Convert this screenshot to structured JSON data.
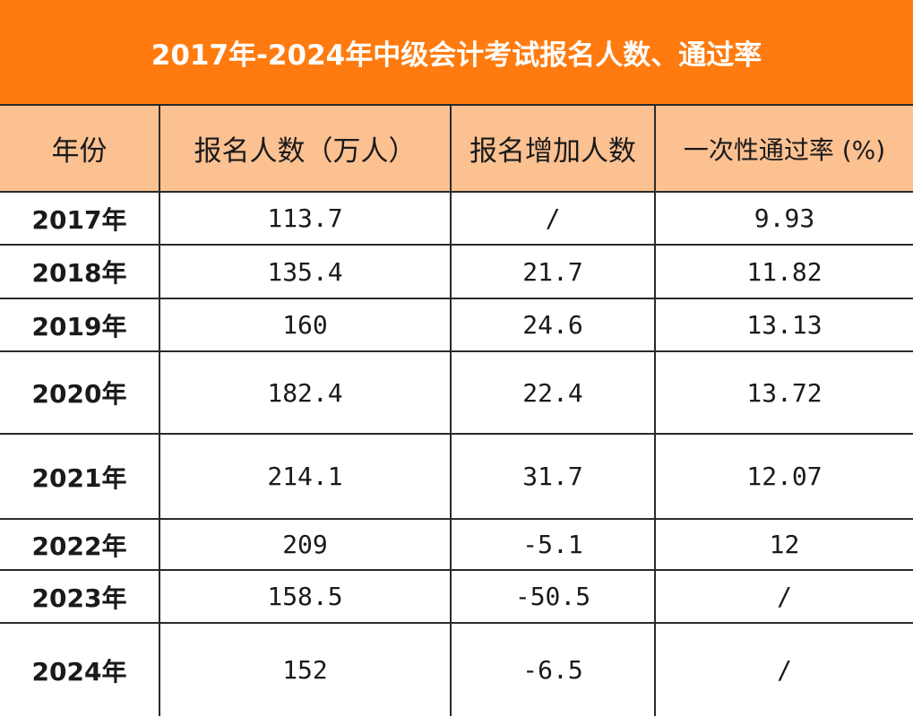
{
  "title": "2017年-2024年中级会计考试报名人数、通过率",
  "columns": [
    "年份",
    "报名人数（万人）",
    "报名增加人数",
    "一次性通过率 (%)"
  ],
  "rows": [
    {
      "year": "2017年",
      "applicants": "113.7",
      "increase": "/",
      "pass_rate": "9.93"
    },
    {
      "year": "2018年",
      "applicants": "135.4",
      "increase": "21.7",
      "pass_rate": "11.82"
    },
    {
      "year": "2019年",
      "applicants": "160",
      "increase": "24.6",
      "pass_rate": "13.13"
    },
    {
      "year": "2020年",
      "applicants": "182.4",
      "increase": "22.4",
      "pass_rate": "13.72"
    },
    {
      "year": "2021年",
      "applicants": "214.1",
      "increase": "31.7",
      "pass_rate": "12.07"
    },
    {
      "year": "2022年",
      "applicants": "209",
      "increase": "-5.1",
      "pass_rate": "12"
    },
    {
      "year": "2023年",
      "applicants": "158.5",
      "increase": "-50.5",
      "pass_rate": "/"
    },
    {
      "year": "2024年",
      "applicants": "152",
      "increase": "-6.5",
      "pass_rate": "/"
    }
  ],
  "colors": {
    "title_bg": "#ff7b0f",
    "header_bg": "#fcc191",
    "border": "#2a2a2a"
  }
}
